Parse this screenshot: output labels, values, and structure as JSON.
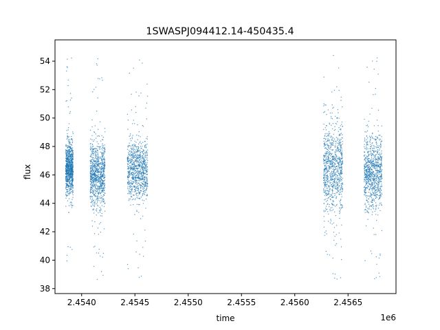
{
  "chart_data": {
    "type": "scatter",
    "title": "1SWASPJ094412.14-450435.4",
    "xlabel": "time",
    "ylabel": "flux",
    "x_offset_label": "1e6",
    "xlim": [
      2.45375,
      2.45695
    ],
    "ylim": [
      37.65,
      55.5
    ],
    "x_ticks": [
      2.454,
      2.4545,
      2.455,
      2.4555,
      2.456,
      2.4565
    ],
    "x_tick_labels": [
      "2.4540",
      "2.4545",
      "2.4550",
      "2.4555",
      "2.4560",
      "2.4565"
    ],
    "y_ticks": [
      38,
      40,
      42,
      44,
      46,
      48,
      50,
      52,
      54
    ],
    "y_tick_labels": [
      "38",
      "40",
      "42",
      "44",
      "46",
      "48",
      "50",
      "52",
      "54"
    ],
    "grid": false,
    "color": "#1f77b4",
    "series": [
      {
        "segments": [
          {
            "x_start": 2.45385,
            "x_end": 2.45392,
            "flux_center": 46.4,
            "flux_spread_1sigma": 0.9,
            "flux_min": 39.4,
            "flux_max": 54.6
          },
          {
            "x_start": 2.45408,
            "x_end": 2.45422,
            "flux_center": 46.0,
            "flux_spread_1sigma": 1.1,
            "flux_min": 38.6,
            "flux_max": 54.2
          },
          {
            "x_start": 2.45443,
            "x_end": 2.45462,
            "flux_center": 46.3,
            "flux_spread_1sigma": 1.0,
            "flux_min": 38.6,
            "flux_max": 54.5
          },
          {
            "x_start": 2.45627,
            "x_end": 2.45645,
            "flux_center": 46.4,
            "flux_spread_1sigma": 1.6,
            "flux_min": 38.4,
            "flux_max": 54.6
          },
          {
            "x_start": 2.45665,
            "x_end": 2.45682,
            "flux_center": 46.2,
            "flux_spread_1sigma": 1.3,
            "flux_min": 38.5,
            "flux_max": 54.5
          }
        ]
      }
    ]
  }
}
